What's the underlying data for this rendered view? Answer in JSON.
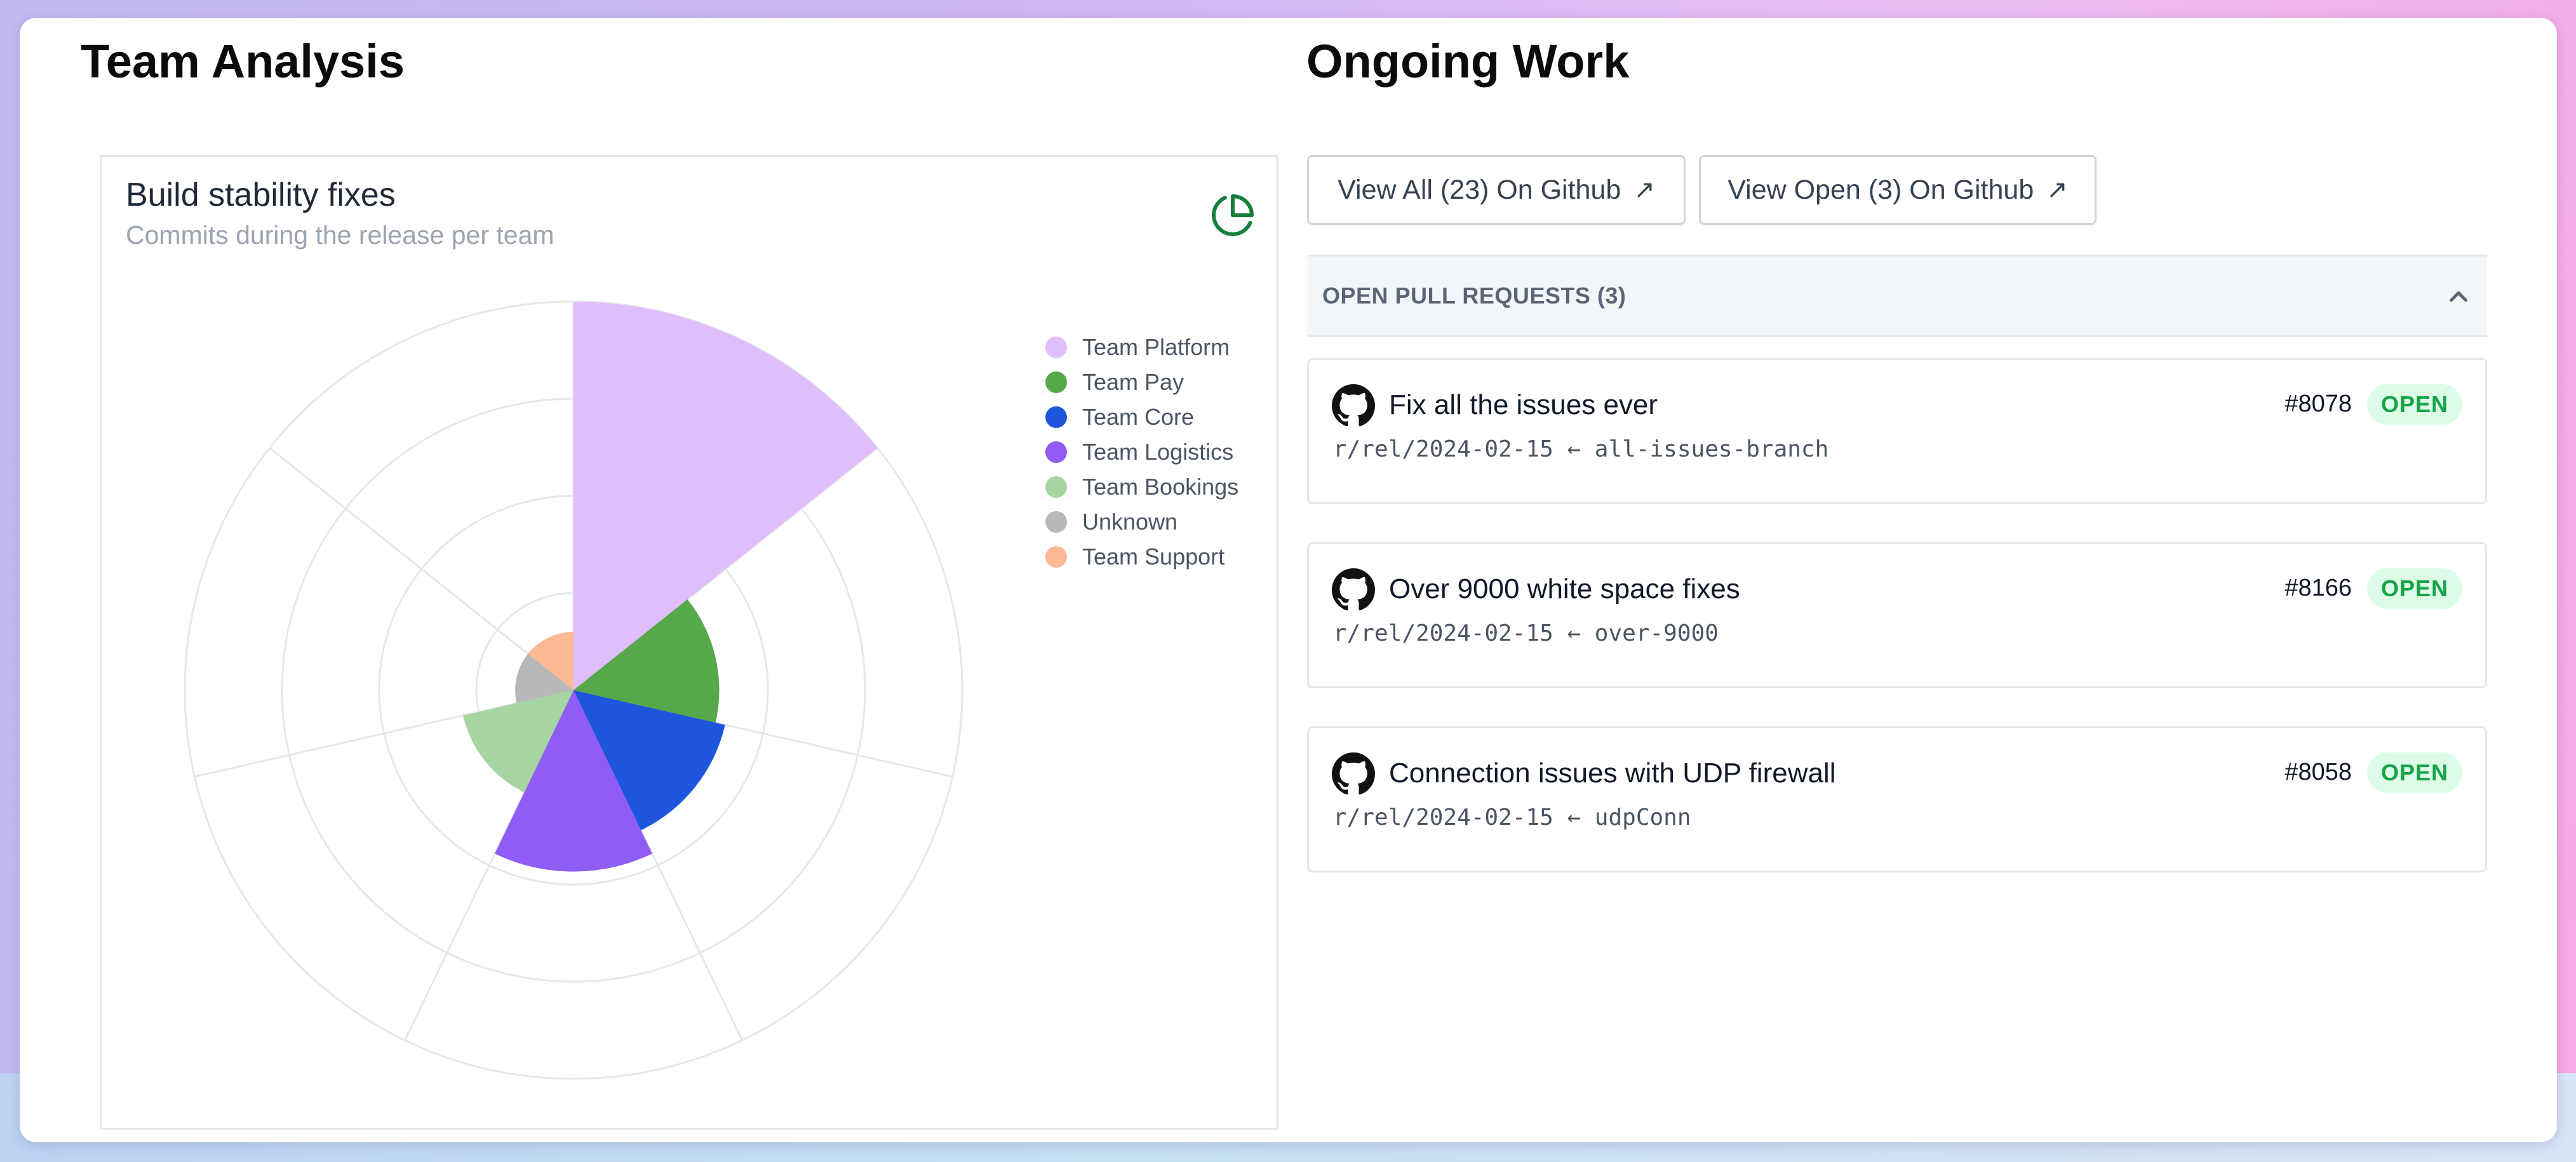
{
  "team_analysis": {
    "heading": "Team Analysis",
    "chart_title": "Build stability fixes",
    "chart_subtitle": "Commits during the release per team",
    "chart_icon": "pie-chart-icon",
    "accent_color": "#15803d"
  },
  "chart_data": {
    "type": "polar-area",
    "title": "Build stability fixes",
    "subtitle": "Commits during the release per team",
    "categories": [
      "Team Platform",
      "Team Pay",
      "Team Core",
      "Team Logistics",
      "Team Bookings",
      "Unknown",
      "Team Support"
    ],
    "values": [
      12,
      4.5,
      4.8,
      5.6,
      3.5,
      1.8,
      1.8
    ],
    "colors": [
      "#e0bdfb",
      "#57a84b",
      "#1d55dc",
      "#8f5cf5",
      "#a6d5a1",
      "#b8b8b8",
      "#fdb894"
    ],
    "rmax": 12,
    "rings": [
      3,
      6,
      9,
      12
    ],
    "grid": true,
    "legend": "top-right"
  },
  "ongoing_work": {
    "heading": "Ongoing Work",
    "view_all_label": "View All (23) On Github",
    "view_open_label": "View Open (3) On Github",
    "arrow_icon": "external-link-arrow-icon",
    "accordion_title": "OPEN PULL REQUESTS (3)",
    "status_color": "#16a34a",
    "pull_requests": [
      {
        "title": "Fix all the issues ever",
        "number": "#8078",
        "status": "OPEN",
        "branch": "r/rel/2024-02-15 ← all-issues-branch"
      },
      {
        "title": "Over 9000 white space fixes",
        "number": "#8166",
        "status": "OPEN",
        "branch": "r/rel/2024-02-15 ← over-9000"
      },
      {
        "title": "Connection issues with UDP firewall",
        "number": "#8058",
        "status": "OPEN",
        "branch": "r/rel/2024-02-15 ← udpConn"
      }
    ]
  }
}
